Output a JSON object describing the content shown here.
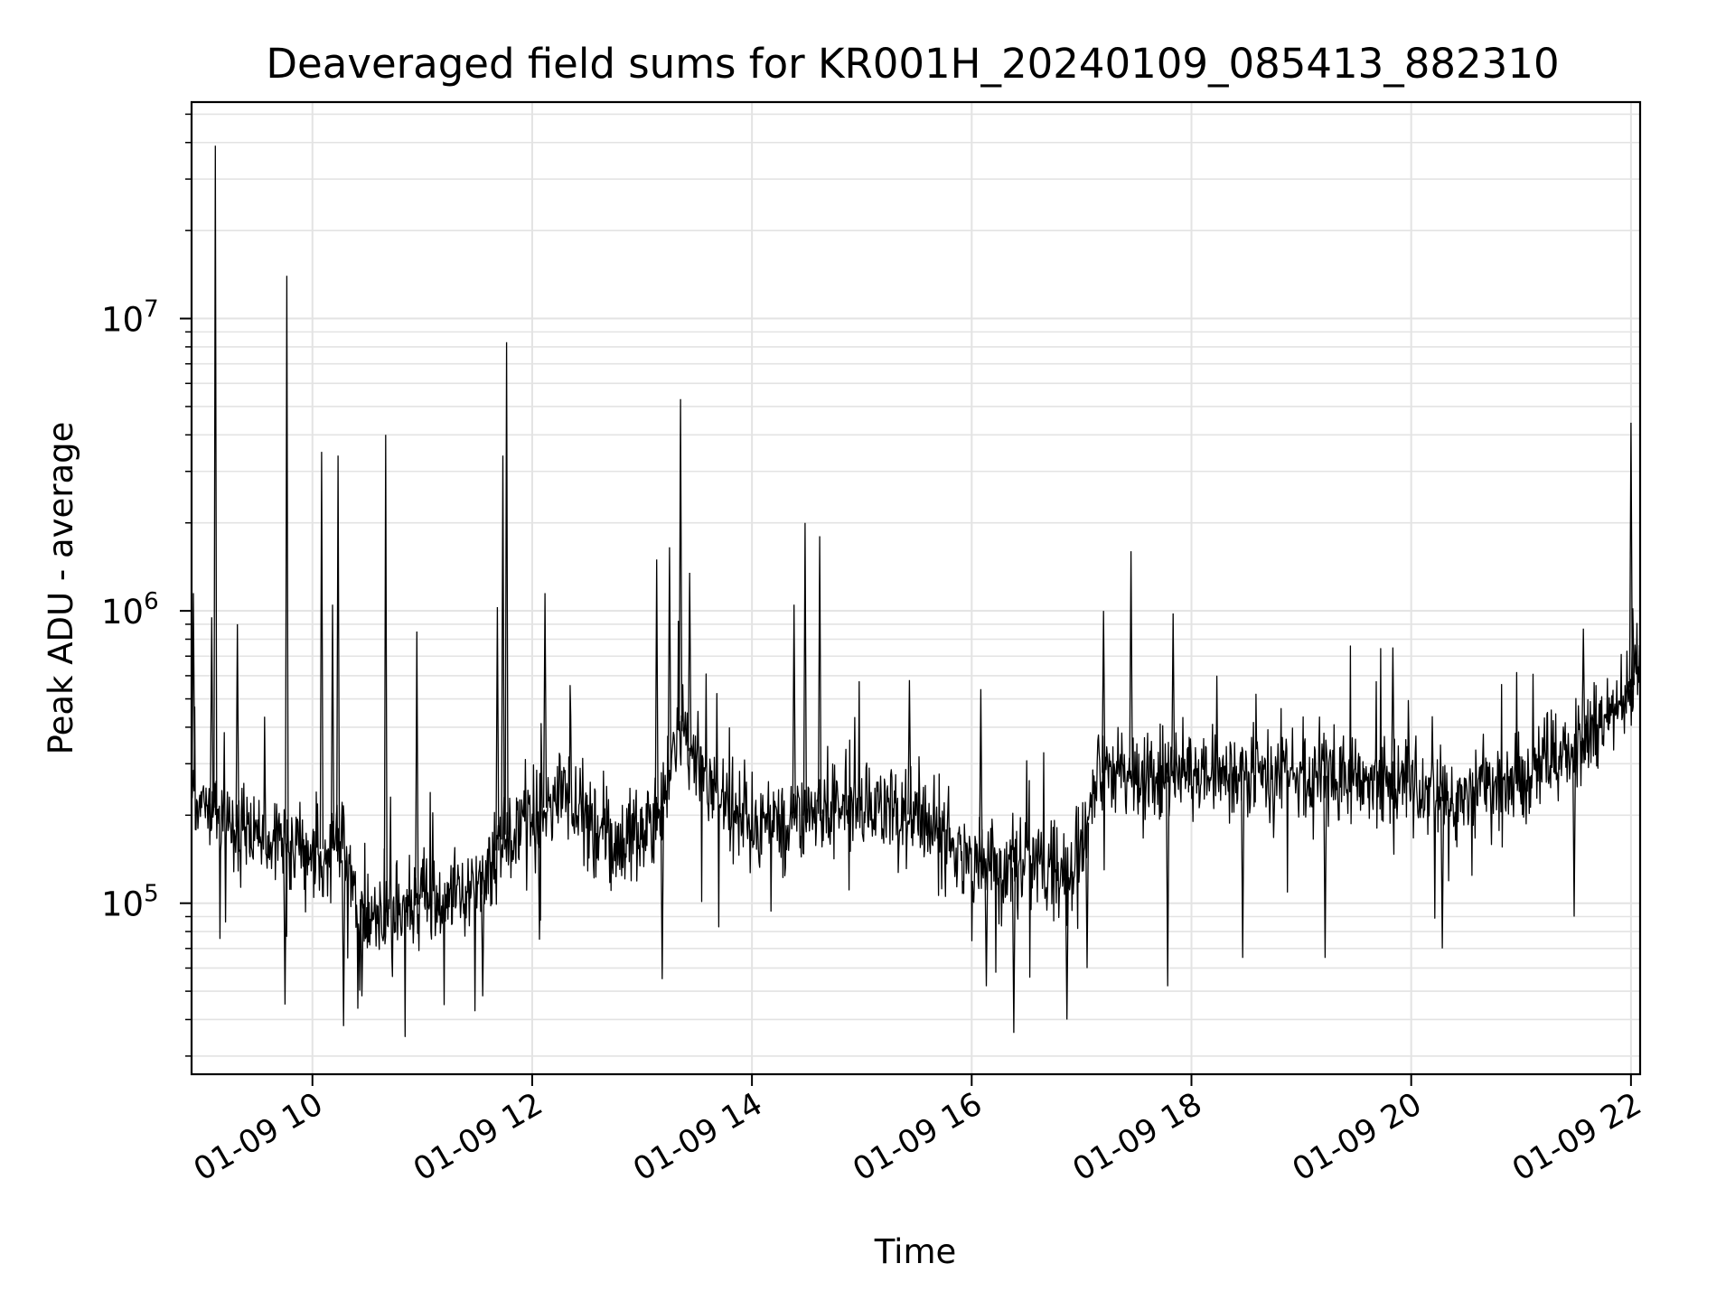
{
  "chart_data": {
    "type": "line",
    "title": "Deaveraged field sums for KR001H_20240109_085413_882310",
    "xlabel": "Time",
    "ylabel": "Peak ADU - average",
    "yscale": "log",
    "grid": true,
    "legend": "none",
    "line_color": "#000000",
    "xlim": [
      "2024-01-09 08:54",
      "2024-01-09 22:05"
    ],
    "ylim": [
      26000,
      55000000
    ],
    "x_ticks": [
      {
        "t": "2024-01-09 10:00",
        "label": "01-09 10"
      },
      {
        "t": "2024-01-09 12:00",
        "label": "01-09 12"
      },
      {
        "t": "2024-01-09 14:00",
        "label": "01-09 14"
      },
      {
        "t": "2024-01-09 16:00",
        "label": "01-09 16"
      },
      {
        "t": "2024-01-09 18:00",
        "label": "01-09 18"
      },
      {
        "t": "2024-01-09 20:00",
        "label": "01-09 20"
      },
      {
        "t": "2024-01-09 22:00",
        "label": "01-09 22"
      }
    ],
    "y_ticks": [
      {
        "value": 100000,
        "base": "10",
        "exp": "5"
      },
      {
        "value": 1000000,
        "base": "10",
        "exp": "6"
      },
      {
        "value": 10000000,
        "base": "10",
        "exp": "7"
      }
    ],
    "baseline": [
      {
        "t": "2024-01-09 08:54",
        "y": 250000
      },
      {
        "t": "2024-01-09 09:20",
        "y": 180000
      },
      {
        "t": "2024-01-09 09:45",
        "y": 160000
      },
      {
        "t": "2024-01-09 10:15",
        "y": 150000
      },
      {
        "t": "2024-01-09 10:30",
        "y": 90000
      },
      {
        "t": "2024-01-09 11:00",
        "y": 100000
      },
      {
        "t": "2024-01-09 11:30",
        "y": 110000
      },
      {
        "t": "2024-01-09 11:45",
        "y": 170000
      },
      {
        "t": "2024-01-09 12:15",
        "y": 230000
      },
      {
        "t": "2024-01-09 12:45",
        "y": 160000
      },
      {
        "t": "2024-01-09 13:10",
        "y": 200000
      },
      {
        "t": "2024-01-09 13:20",
        "y": 400000
      },
      {
        "t": "2024-01-09 13:35",
        "y": 250000
      },
      {
        "t": "2024-01-09 14:00",
        "y": 180000
      },
      {
        "t": "2024-01-09 14:30",
        "y": 200000
      },
      {
        "t": "2024-01-09 15:00",
        "y": 210000
      },
      {
        "t": "2024-01-09 15:30",
        "y": 200000
      },
      {
        "t": "2024-01-09 16:00",
        "y": 140000
      },
      {
        "t": "2024-01-09 16:30",
        "y": 130000
      },
      {
        "t": "2024-01-09 16:55",
        "y": 120000
      },
      {
        "t": "2024-01-09 17:10",
        "y": 280000
      },
      {
        "t": "2024-01-09 17:40",
        "y": 270000
      },
      {
        "t": "2024-01-09 18:30",
        "y": 280000
      },
      {
        "t": "2024-01-09 19:30",
        "y": 270000
      },
      {
        "t": "2024-01-09 20:15",
        "y": 230000
      },
      {
        "t": "2024-01-09 21:00",
        "y": 260000
      },
      {
        "t": "2024-01-09 21:40",
        "y": 380000
      },
      {
        "t": "2024-01-09 22:05",
        "y": 600000
      }
    ],
    "spikes": [
      {
        "t": "2024-01-09 09:07",
        "y": 39000000
      },
      {
        "t": "2024-01-09 09:46",
        "y": 14000000
      },
      {
        "t": "2024-01-09 10:05",
        "y": 3500000
      },
      {
        "t": "2024-01-09 10:14",
        "y": 3400000
      },
      {
        "t": "2024-01-09 10:40",
        "y": 4000000
      },
      {
        "t": "2024-01-09 11:46",
        "y": 8300000
      },
      {
        "t": "2024-01-09 11:44",
        "y": 3400000
      },
      {
        "t": "2024-01-09 13:21",
        "y": 5300000
      },
      {
        "t": "2024-01-09 14:29",
        "y": 2000000
      },
      {
        "t": "2024-01-09 14:37",
        "y": 1800000
      },
      {
        "t": "2024-01-09 17:27",
        "y": 1600000
      },
      {
        "t": "2024-01-09 22:00",
        "y": 4400000
      },
      {
        "t": "2024-01-09 08:55",
        "y": 1150000
      },
      {
        "t": "2024-01-09 09:05",
        "y": 950000
      },
      {
        "t": "2024-01-09 09:19",
        "y": 900000
      },
      {
        "t": "2024-01-09 10:11",
        "y": 1050000
      },
      {
        "t": "2024-01-09 10:57",
        "y": 850000
      },
      {
        "t": "2024-01-09 11:41",
        "y": 1030000
      },
      {
        "t": "2024-01-09 12:07",
        "y": 1150000
      },
      {
        "t": "2024-01-09 13:08",
        "y": 1500000
      },
      {
        "t": "2024-01-09 13:15",
        "y": 1650000
      },
      {
        "t": "2024-01-09 13:26",
        "y": 1350000
      },
      {
        "t": "2024-01-09 14:23",
        "y": 1050000
      },
      {
        "t": "2024-01-09 15:26",
        "y": 580000
      },
      {
        "t": "2024-01-09 16:05",
        "y": 540000
      },
      {
        "t": "2024-01-09 17:12",
        "y": 1000000
      },
      {
        "t": "2024-01-09 17:50",
        "y": 980000
      },
      {
        "t": "2024-01-09 19:50",
        "y": 750000
      },
      {
        "t": "2024-01-09 21:34",
        "y": 870000
      },
      {
        "t": "2024-01-09 22:01",
        "y": 1020000
      }
    ],
    "dips": [
      {
        "t": "2024-01-09 09:45",
        "y": 45000
      },
      {
        "t": "2024-01-09 10:17",
        "y": 38000
      },
      {
        "t": "2024-01-09 10:27",
        "y": 48000
      },
      {
        "t": "2024-01-09 11:33",
        "y": 48000
      },
      {
        "t": "2024-01-09 12:04",
        "y": 75000
      },
      {
        "t": "2024-01-09 13:11",
        "y": 55000
      },
      {
        "t": "2024-01-09 16:23",
        "y": 36000
      },
      {
        "t": "2024-01-09 16:08",
        "y": 52000
      },
      {
        "t": "2024-01-09 16:52",
        "y": 40000
      },
      {
        "t": "2024-01-09 17:03",
        "y": 60000
      },
      {
        "t": "2024-01-09 17:47",
        "y": 52000
      },
      {
        "t": "2024-01-09 18:28",
        "y": 65000
      },
      {
        "t": "2024-01-09 19:13",
        "y": 65000
      },
      {
        "t": "2024-01-09 20:17",
        "y": 70000
      },
      {
        "t": "2024-01-09 21:29",
        "y": 90000
      }
    ]
  }
}
